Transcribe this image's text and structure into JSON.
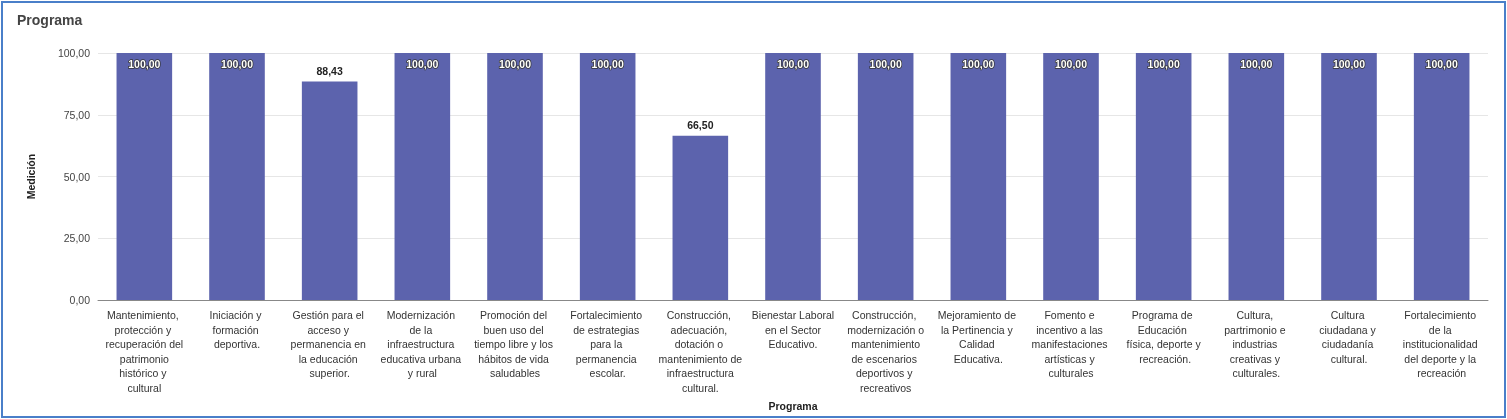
{
  "chart_data": {
    "type": "bar",
    "title": "Programa",
    "xlabel": "Programa",
    "ylabel": "Medición",
    "categories": [
      "Mantenimiento, protección y recuperación del patrimonio histórico y cultural",
      "Iniciación y formación deportiva.",
      "Gestión para el acceso y permanencia en la educación superior.",
      "Modernización de la infraestructura educativa urbana y rural",
      "Promoción del buen uso del tiempo libre y los hábitos de vida saludables",
      "Fortalecimiento de estrategias para la permanencia escolar.",
      "Construcción, adecuación, dotación o mantenimiento de infraestructura cultural.",
      "Bienestar Laboral en el Sector Educativo.",
      "Construcción, modernización o mantenimiento de escenarios deportivos y recreativos",
      "Mejoramiento de la Pertinencia y Calidad Educativa.",
      "Fomento e incentivo a las manifestaciones artísticas y culturales",
      "Programa de Educación física, deporte y recreación.",
      "Cultura, partrimonio e industrias creativas y culturales.",
      "Cultura ciudadana y ciudadanía cultural.",
      "Fortalecimiento de la institucionalidad del deporte y la recreación"
    ],
    "values": [
      100,
      100,
      88.43,
      100,
      100,
      100,
      66.5,
      100,
      100,
      100,
      100,
      100,
      100,
      100,
      100
    ],
    "value_labels": [
      "100,00",
      "100,00",
      "88,43",
      "100,00",
      "100,00",
      "100,00",
      "66,50",
      "100,00",
      "100,00",
      "100,00",
      "100,00",
      "100,00",
      "100,00",
      "100,00",
      "100,00"
    ],
    "color": "#5c63ad",
    "ylim": [
      0,
      100
    ],
    "yticks": [
      {
        "value": 0,
        "label": "0,00"
      },
      {
        "value": 25,
        "label": "25,00"
      },
      {
        "value": 50,
        "label": "50,00"
      },
      {
        "value": 75,
        "label": "75,00"
      },
      {
        "value": 100,
        "label": "100,00"
      }
    ],
    "grid": "y"
  }
}
